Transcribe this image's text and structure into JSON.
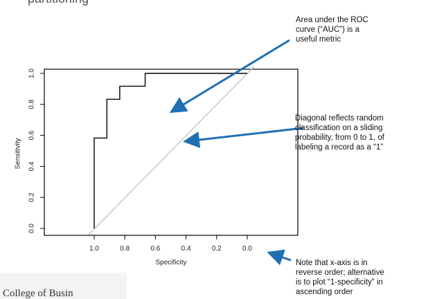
{
  "header": {
    "cutoff_title": "partitioning"
  },
  "annotations": {
    "auc": [
      "Area under the ROC",
      "curve (“AUC”) is a",
      "useful metric"
    ],
    "diagonal": [
      "Diagonal reflects random",
      "classification on a sliding",
      "probability, from 0 to 1, of",
      "labeling a record as a “1”"
    ],
    "axis": [
      "Note that x-axis is in",
      "reverse order; alternative",
      "is to plot  “1-specificity” in",
      "ascending order"
    ]
  },
  "footer": {
    "text": "College of Busin"
  },
  "colors": {
    "arrow": "#1f6fb2",
    "roc_line": "#000000",
    "diagonal": "#c0c0c0",
    "text": "#111111"
  },
  "chart_data": {
    "type": "line",
    "title": "",
    "xlabel": "Specificity",
    "ylabel": "Sensitivity",
    "x_reversed": true,
    "xlim": [
      1.0,
      0.0
    ],
    "ylim": [
      0.0,
      1.0
    ],
    "xticks": [
      "1.0",
      "0.8",
      "0.6",
      "0.4",
      "0.2",
      "0.0"
    ],
    "yticks": [
      "0.0",
      "0.2",
      "0.4",
      "0.6",
      "0.8",
      "1.0"
    ],
    "grid": false,
    "series": [
      {
        "x": [
          1.0,
          1.0,
          0.917,
          0.917,
          0.833,
          0.833,
          0.667,
          0.667,
          0.0
        ],
        "y": [
          0.0,
          0.583,
          0.583,
          0.833,
          0.833,
          0.917,
          0.917,
          1.0,
          1.0
        ]
      }
    ],
    "reference_line": {
      "x": [
        1.0,
        0.0
      ],
      "y": [
        0.0,
        1.0
      ]
    }
  }
}
